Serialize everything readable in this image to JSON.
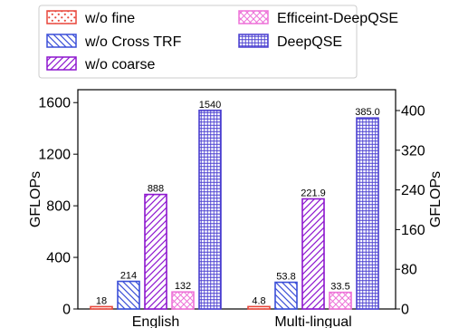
{
  "chart_data": {
    "type": "bar",
    "categories": [
      "English",
      "Multi-lingual"
    ],
    "series": [
      {
        "name": "w/o fine",
        "values": [
          18,
          4.8
        ],
        "labels": [
          "18",
          "4.8"
        ],
        "color": "#e8473b",
        "pattern": "dots"
      },
      {
        "name": "w/o Cross TRF",
        "values": [
          214,
          53.8
        ],
        "labels": [
          "214",
          "53.8"
        ],
        "color": "#3b4fd8",
        "pattern": "backslash"
      },
      {
        "name": "w/o coarse",
        "values": [
          888,
          221.9
        ],
        "labels": [
          "888",
          "221.9"
        ],
        "color": "#8e17cf",
        "pattern": "slash"
      },
      {
        "name": "Efficeint-DeepQSE",
        "values": [
          132,
          33.5
        ],
        "labels": [
          "132",
          "33.5"
        ],
        "color": "#ee72d8",
        "pattern": "cross"
      },
      {
        "name": "DeepQSE",
        "values": [
          1540,
          385.0
        ],
        "labels": [
          "1540",
          "385.0"
        ],
        "color": "#4a3fd0",
        "pattern": "grid"
      }
    ],
    "axes": {
      "left": {
        "label": "GFLOPs",
        "ticks": [
          0,
          400,
          800,
          1200,
          1600
        ],
        "range": [
          0,
          1700
        ],
        "applies_to": "English"
      },
      "right": {
        "label": "GFLOPs",
        "ticks": [
          0,
          80,
          160,
          240,
          320,
          400
        ],
        "range": [
          0,
          442
        ],
        "applies_to": "Multi-lingual"
      }
    },
    "legend_position": "top",
    "grid": false
  }
}
